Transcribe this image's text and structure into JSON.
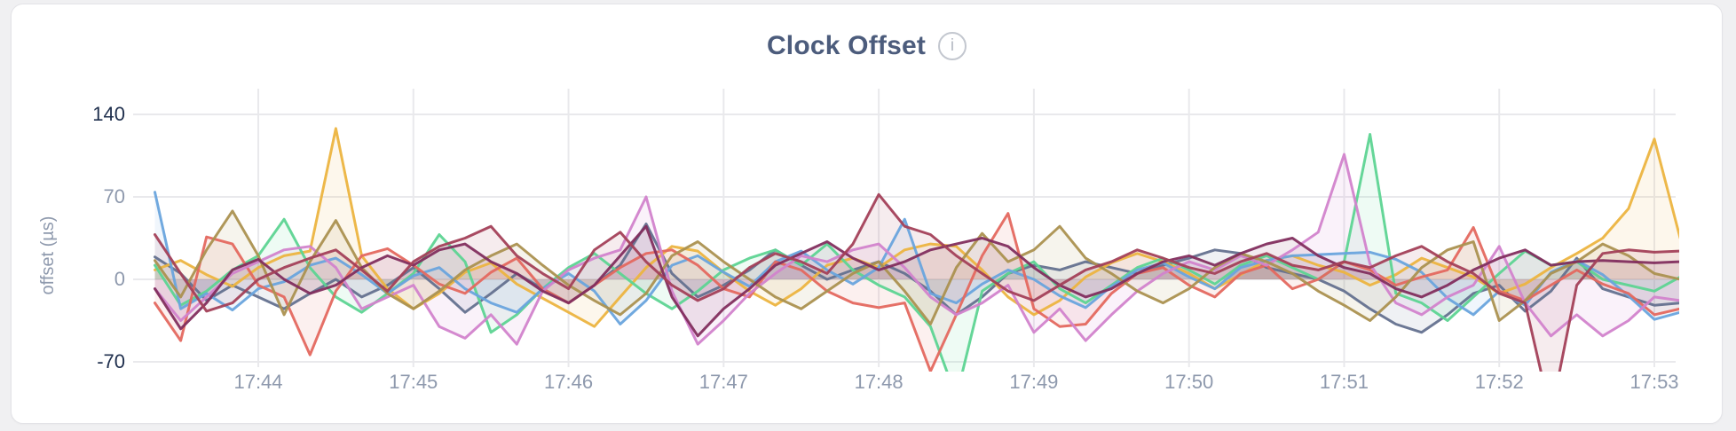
{
  "page": {
    "background": "#f0f0f2"
  },
  "card": {
    "title": "Clock Offset",
    "info_icon_glyph": "i"
  },
  "colors": {
    "title": "#4c5c7c",
    "tick_strong": "#20304e",
    "tick_muted": "#8e99ad",
    "axis_label": "#8e99ad",
    "grid": "#e9e9ec",
    "card_border": "#e3e3e7"
  },
  "chart_data": {
    "type": "line",
    "title": "Clock Offset",
    "xlabel": "",
    "ylabel": "offset (µs)",
    "ylim": [
      -70,
      140
    ],
    "grid": true,
    "legend": "none",
    "x_start": "17:43:20",
    "x_interval_seconds": 10,
    "x_ticks": [
      {
        "label": "17:44",
        "index": 4
      },
      {
        "label": "17:45",
        "index": 10
      },
      {
        "label": "17:46",
        "index": 16
      },
      {
        "label": "17:47",
        "index": 22
      },
      {
        "label": "17:48",
        "index": 28
      },
      {
        "label": "17:49",
        "index": 34
      },
      {
        "label": "17:50",
        "index": 40
      },
      {
        "label": "17:51",
        "index": 46
      },
      {
        "label": "17:52",
        "index": 52
      },
      {
        "label": "17:53",
        "index": 58
      }
    ],
    "y_ticks": [
      {
        "value": 140,
        "strong": true
      },
      {
        "value": 70,
        "strong": false
      },
      {
        "value": 0,
        "strong": false
      },
      {
        "value": -70,
        "strong": true
      }
    ],
    "series": [
      {
        "name": "slate",
        "color": "#64718f",
        "values": [
          19,
          5,
          -18,
          -5,
          -15,
          -25,
          -12,
          0,
          -15,
          -5,
          10,
          -8,
          -28,
          -12,
          5,
          -8,
          -20,
          -5,
          12,
          47,
          5,
          -15,
          -5,
          8,
          25,
          12,
          0,
          8,
          15,
          5,
          -10,
          -30,
          -15,
          5,
          12,
          8,
          15,
          10,
          5,
          12,
          18,
          25,
          22,
          10,
          5,
          0,
          -10,
          -25,
          -38,
          -45,
          -30,
          -12,
          -5,
          -27,
          -10,
          18,
          -8,
          -15,
          -22,
          -20
        ]
      },
      {
        "name": "gold",
        "color": "#ecb440",
        "values": [
          8,
          16,
          4,
          -6,
          10,
          20,
          24,
          128,
          20,
          -8,
          -25,
          -12,
          6,
          14,
          -4,
          -16,
          -28,
          -40,
          -15,
          10,
          28,
          24,
          6,
          -10,
          -22,
          -8,
          12,
          18,
          10,
          25,
          30,
          28,
          8,
          -15,
          -30,
          -18,
          2,
          14,
          22,
          15,
          5,
          -8,
          4,
          16,
          20,
          12,
          6,
          -5,
          4,
          18,
          10,
          2,
          -12,
          -4,
          10,
          22,
          35,
          60,
          119,
          35
        ]
      },
      {
        "name": "green",
        "color": "#5dd492",
        "values": [
          12,
          -22,
          -10,
          8,
          20,
          51,
          10,
          -15,
          -28,
          -12,
          5,
          38,
          15,
          -45,
          -30,
          -8,
          10,
          22,
          5,
          -12,
          -25,
          -10,
          8,
          18,
          25,
          12,
          30,
          8,
          -5,
          -15,
          -40,
          -100,
          -10,
          5,
          15,
          -8,
          -20,
          -5,
          10,
          18,
          8,
          -4,
          12,
          20,
          10,
          0,
          15,
          123,
          -12,
          -20,
          -35,
          -15,
          5,
          24,
          12,
          15,
          0,
          -5,
          -10,
          2
        ]
      },
      {
        "name": "blue",
        "color": "#69a4dd",
        "values": [
          74,
          -25,
          -12,
          -26,
          -8,
          -2,
          12,
          18,
          4,
          -12,
          3,
          10,
          -8,
          -20,
          -28,
          -8,
          5,
          -10,
          -38,
          -18,
          12,
          20,
          6,
          -6,
          15,
          24,
          8,
          -4,
          10,
          51,
          -12,
          -20,
          -4,
          8,
          0,
          -14,
          -24,
          -6,
          8,
          14,
          2,
          -8,
          10,
          16,
          20,
          21,
          22,
          23,
          17,
          6,
          -16,
          -30,
          -10,
          -22,
          6,
          16,
          4,
          -14,
          -34,
          -28
        ]
      },
      {
        "name": "salmon",
        "color": "#e4685f",
        "values": [
          -20,
          -52,
          36,
          30,
          -5,
          -15,
          -64,
          -10,
          20,
          26,
          12,
          -4,
          -12,
          6,
          18,
          -8,
          -20,
          -5,
          10,
          22,
          25,
          12,
          -8,
          -15,
          15,
          8,
          -10,
          -20,
          -24,
          -20,
          -78,
          -30,
          20,
          56,
          -25,
          -40,
          -38,
          -12,
          5,
          10,
          -5,
          -15,
          5,
          12,
          -8,
          0,
          15,
          8,
          -5,
          2,
          8,
          44,
          -10,
          -18,
          -5,
          8,
          -4,
          -12,
          -30,
          -25
        ]
      },
      {
        "name": "orchid",
        "color": "#d283cc",
        "values": [
          -8,
          -35,
          -15,
          5,
          15,
          25,
          28,
          10,
          -25,
          -15,
          -5,
          -40,
          -50,
          -30,
          -55,
          -10,
          8,
          18,
          25,
          70,
          -10,
          -55,
          -35,
          -12,
          5,
          20,
          15,
          25,
          30,
          10,
          -15,
          -30,
          -20,
          -5,
          -45,
          -25,
          -52,
          -30,
          -10,
          5,
          15,
          8,
          20,
          12,
          25,
          40,
          106,
          13,
          -20,
          -30,
          -15,
          -5,
          28,
          -20,
          -48,
          -30,
          -48,
          -35,
          -15,
          -18
        ]
      },
      {
        "name": "khaki",
        "color": "#ab9150",
        "values": [
          16,
          -15,
          25,
          58,
          20,
          -30,
          15,
          50,
          10,
          -12,
          -25,
          -10,
          8,
          20,
          30,
          12,
          -5,
          -18,
          -30,
          -12,
          20,
          32,
          15,
          0,
          -15,
          -25,
          -10,
          5,
          15,
          -10,
          -38,
          10,
          39,
          15,
          25,
          45,
          18,
          5,
          -10,
          -20,
          -8,
          10,
          22,
          15,
          5,
          -10,
          -22,
          -35,
          -15,
          10,
          25,
          32,
          -35,
          -18,
          5,
          15,
          30,
          20,
          5,
          0
        ]
      },
      {
        "name": "plum",
        "color": "#822e5e",
        "values": [
          -8,
          -42,
          -20,
          8,
          17,
          0,
          -12,
          -5,
          10,
          20,
          12,
          25,
          30,
          15,
          5,
          -10,
          -20,
          -5,
          20,
          45,
          -15,
          -48,
          -25,
          -8,
          12,
          22,
          32,
          18,
          8,
          15,
          25,
          30,
          35,
          28,
          10,
          -5,
          -15,
          -8,
          5,
          15,
          20,
          12,
          22,
          30,
          35,
          20,
          10,
          5,
          -8,
          -15,
          -5,
          8,
          18,
          25,
          12,
          15,
          16,
          15,
          14,
          15
        ]
      },
      {
        "name": "maroon",
        "color": "#a34058",
        "values": [
          38,
          5,
          -27,
          -20,
          0,
          10,
          18,
          25,
          8,
          -10,
          15,
          28,
          35,
          45,
          20,
          5,
          -8,
          25,
          40,
          15,
          -5,
          -18,
          -8,
          10,
          22,
          15,
          5,
          30,
          72,
          45,
          38,
          20,
          5,
          -10,
          -18,
          -5,
          8,
          15,
          25,
          18,
          10,
          5,
          15,
          22,
          12,
          8,
          15,
          10,
          20,
          28,
          15,
          5,
          -12,
          -20,
          -115,
          -5,
          22,
          25,
          23,
          24
        ]
      }
    ]
  }
}
